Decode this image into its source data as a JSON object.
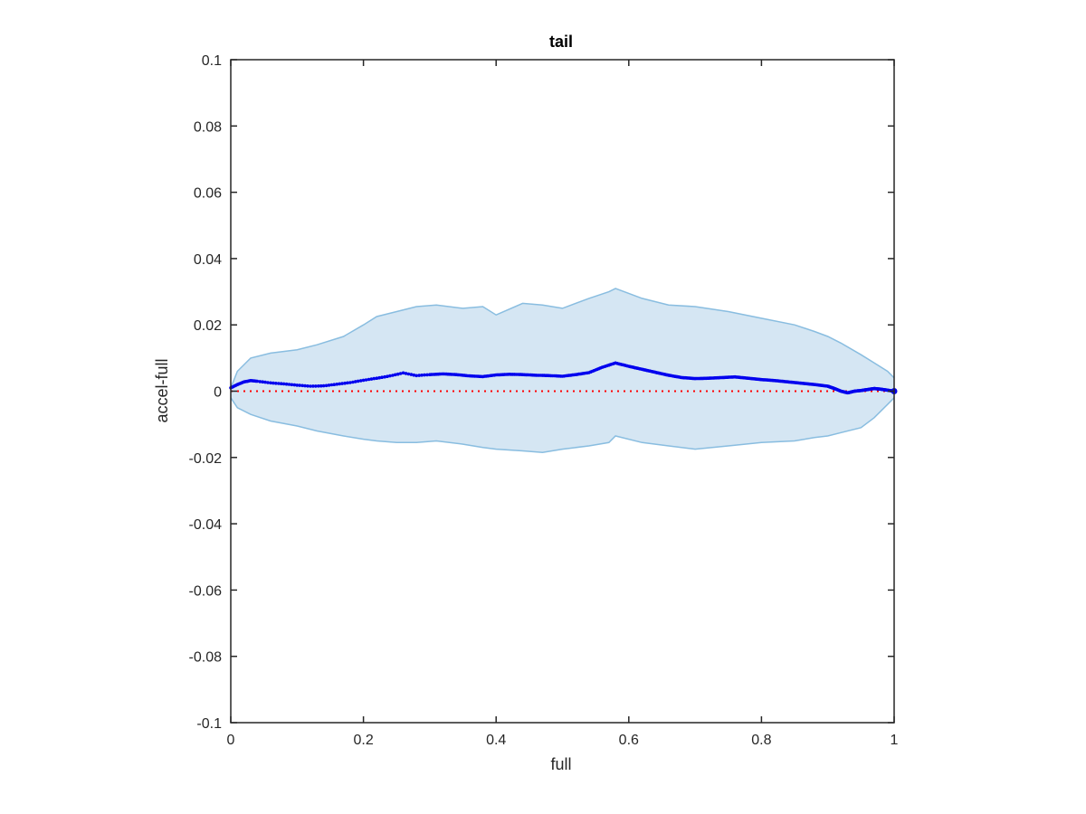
{
  "chart_data": {
    "type": "line",
    "title": "tail",
    "xlabel": "full",
    "ylabel": "accel-full",
    "xlim": [
      0,
      1
    ],
    "ylim": [
      -0.1,
      0.1
    ],
    "xticks": [
      0,
      0.2,
      0.4,
      0.6,
      0.8,
      1
    ],
    "xtick_labels": [
      "0",
      "0.2",
      "0.4",
      "0.6",
      "0.8",
      "1"
    ],
    "yticks": [
      0.1,
      0.08,
      0.06,
      0.04,
      0.02,
      0,
      -0.02,
      -0.04,
      -0.06,
      -0.08,
      -0.1
    ],
    "ytick_labels": [
      "0.1",
      "0.08",
      "0.06",
      "0.04",
      "0.02",
      "0",
      "-0.02",
      "-0.04",
      "-0.06",
      "-0.08",
      "-0.1"
    ],
    "grid": false,
    "colors": {
      "band_fill": "#d5e6f3",
      "band_edge": "#89bde0",
      "mean_points": "#0000ee",
      "zero_line": "#ff0000",
      "axes": "#262626"
    },
    "band": {
      "x": [
        0,
        0.01,
        0.03,
        0.06,
        0.1,
        0.13,
        0.17,
        0.2,
        0.22,
        0.25,
        0.28,
        0.31,
        0.35,
        0.38,
        0.4,
        0.44,
        0.47,
        0.5,
        0.54,
        0.57,
        0.58,
        0.62,
        0.66,
        0.7,
        0.75,
        0.8,
        0.85,
        0.88,
        0.9,
        0.92,
        0.95,
        0.97,
        0.99,
        1
      ],
      "upper": [
        0.001,
        0.006,
        0.01,
        0.0115,
        0.0125,
        0.014,
        0.0165,
        0.02,
        0.0225,
        0.024,
        0.0255,
        0.026,
        0.025,
        0.0255,
        0.023,
        0.0265,
        0.026,
        0.025,
        0.028,
        0.03,
        0.031,
        0.028,
        0.026,
        0.0255,
        0.024,
        0.022,
        0.02,
        0.018,
        0.0165,
        0.0145,
        0.011,
        0.0085,
        0.006,
        0.004
      ],
      "lower": [
        -0.002,
        -0.005,
        -0.007,
        -0.009,
        -0.0105,
        -0.012,
        -0.0135,
        -0.0145,
        -0.015,
        -0.0155,
        -0.0155,
        -0.015,
        -0.016,
        -0.017,
        -0.0175,
        -0.018,
        -0.0185,
        -0.0175,
        -0.0165,
        -0.0155,
        -0.0135,
        -0.0155,
        -0.0165,
        -0.0175,
        -0.0165,
        -0.0155,
        -0.015,
        -0.014,
        -0.0135,
        -0.0125,
        -0.011,
        -0.008,
        -0.004,
        -0.002
      ]
    },
    "mean_series": {
      "x": [
        0,
        0.01,
        0.02,
        0.03,
        0.04,
        0.06,
        0.08,
        0.1,
        0.12,
        0.14,
        0.16,
        0.18,
        0.2,
        0.22,
        0.24,
        0.26,
        0.28,
        0.3,
        0.32,
        0.34,
        0.36,
        0.38,
        0.4,
        0.42,
        0.44,
        0.46,
        0.48,
        0.5,
        0.52,
        0.54,
        0.56,
        0.58,
        0.6,
        0.62,
        0.64,
        0.66,
        0.68,
        0.7,
        0.72,
        0.74,
        0.76,
        0.78,
        0.8,
        0.82,
        0.84,
        0.86,
        0.88,
        0.9,
        0.91,
        0.92,
        0.93,
        0.94,
        0.95,
        0.96,
        0.97,
        0.98,
        0.99,
        1
      ],
      "y": [
        0.001,
        0.002,
        0.0028,
        0.0032,
        0.003,
        0.0025,
        0.0022,
        0.0018,
        0.0015,
        0.0016,
        0.0021,
        0.0026,
        0.0033,
        0.0039,
        0.0046,
        0.0055,
        0.0047,
        0.005,
        0.0052,
        0.005,
        0.0046,
        0.0044,
        0.0049,
        0.0051,
        0.005,
        0.0048,
        0.0047,
        0.0045,
        0.005,
        0.0056,
        0.0072,
        0.0085,
        0.0075,
        0.0066,
        0.0057,
        0.0048,
        0.0041,
        0.0038,
        0.0039,
        0.0041,
        0.0043,
        0.0039,
        0.0035,
        0.0032,
        0.0028,
        0.0024,
        0.002,
        0.0015,
        0.0008,
        0,
        -0.0005,
        0,
        0.0002,
        0.0005,
        0.0008,
        0.0006,
        0.0003,
        0
      ]
    },
    "zero_line": {
      "y": 0,
      "style": "dotted"
    }
  }
}
